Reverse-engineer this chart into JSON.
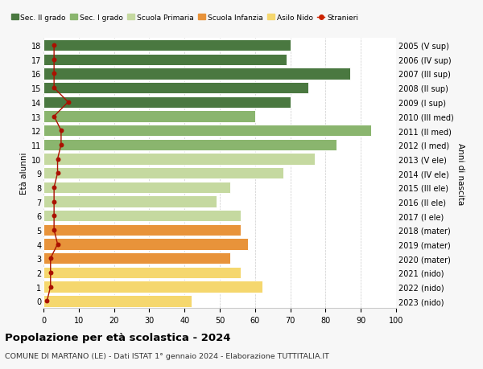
{
  "ages": [
    0,
    1,
    2,
    3,
    4,
    5,
    6,
    7,
    8,
    9,
    10,
    11,
    12,
    13,
    14,
    15,
    16,
    17,
    18
  ],
  "values": [
    42,
    62,
    56,
    53,
    58,
    56,
    56,
    49,
    53,
    68,
    77,
    83,
    93,
    60,
    70,
    75,
    87,
    69,
    70
  ],
  "right_labels": [
    "2023 (nido)",
    "2022 (nido)",
    "2021 (nido)",
    "2020 (mater)",
    "2019 (mater)",
    "2018 (mater)",
    "2017 (I ele)",
    "2016 (II ele)",
    "2015 (III ele)",
    "2014 (IV ele)",
    "2013 (V ele)",
    "2012 (I med)",
    "2011 (II med)",
    "2010 (III med)",
    "2009 (I sup)",
    "2008 (II sup)",
    "2007 (III sup)",
    "2006 (IV sup)",
    "2005 (V sup)"
  ],
  "bar_colors": [
    "#f5d76e",
    "#f5d76e",
    "#f5d76e",
    "#e8933a",
    "#e8933a",
    "#e8933a",
    "#c5d9a0",
    "#c5d9a0",
    "#c5d9a0",
    "#c5d9a0",
    "#c5d9a0",
    "#8ab56e",
    "#8ab56e",
    "#8ab56e",
    "#4a7840",
    "#4a7840",
    "#4a7840",
    "#4a7840",
    "#4a7840"
  ],
  "stranieri_values": [
    1,
    2,
    2,
    2,
    4,
    3,
    3,
    3,
    3,
    4,
    4,
    5,
    5,
    3,
    7,
    3,
    3,
    3,
    3
  ],
  "legend_labels": [
    "Sec. II grado",
    "Sec. I grado",
    "Scuola Primaria",
    "Scuola Infanzia",
    "Asilo Nido",
    "Stranieri"
  ],
  "legend_colors": [
    "#4a7840",
    "#8ab56e",
    "#c5d9a0",
    "#e8933a",
    "#f5d76e",
    "#cc2200"
  ],
  "title": "Popolazione per età scolastica - 2024",
  "subtitle": "COMUNE DI MARTANO (LE) - Dati ISTAT 1° gennaio 2024 - Elaborazione TUTTITALIA.IT",
  "ylabel_left": "Età alunni",
  "ylabel_right": "Anni di nascita",
  "xlim": [
    0,
    100
  ],
  "xticks": [
    0,
    10,
    20,
    30,
    40,
    50,
    60,
    70,
    80,
    90,
    100
  ],
  "background_color": "#f7f7f7",
  "plot_bg_color": "#ffffff"
}
